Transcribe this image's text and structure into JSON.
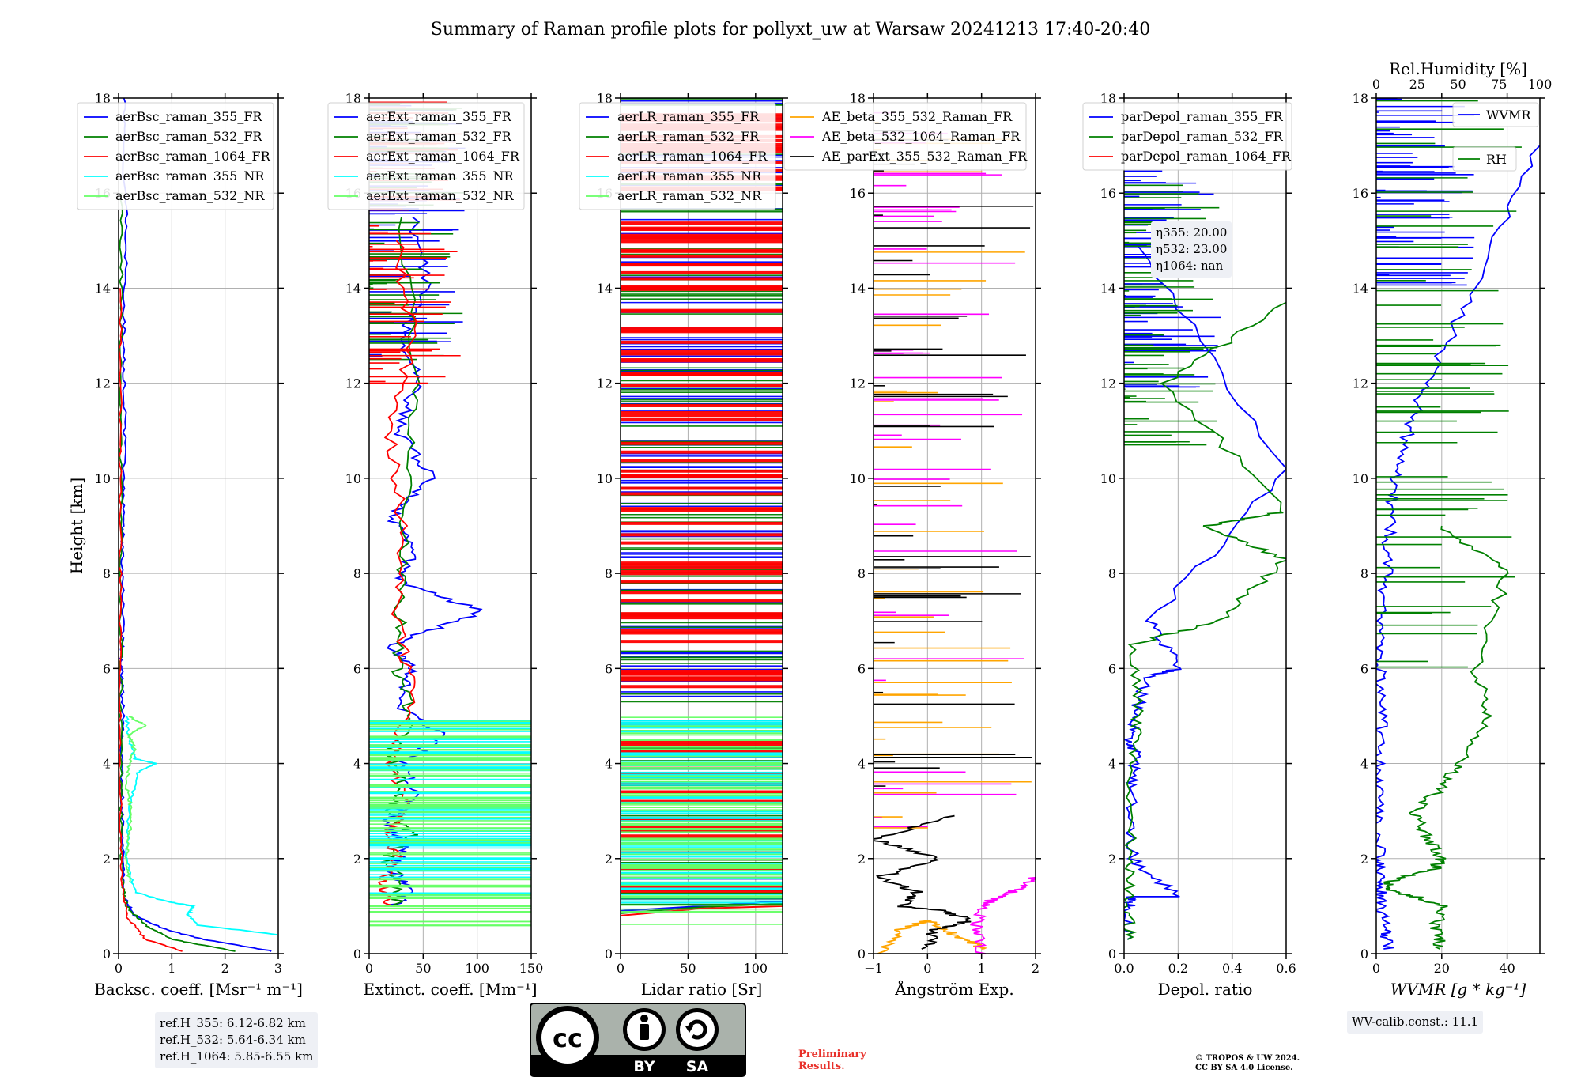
{
  "title": "Summary of Raman profile plots for pollyxt_uw at Warsaw 20241213 17:40-20:40",
  "ylabel": "Height [km]",
  "yticks": [
    "0",
    "2",
    "4",
    "6",
    "8",
    "10",
    "12",
    "14",
    "16",
    "18"
  ],
  "panels": [
    {
      "key": "bsc",
      "xlabel": "Backsc. coeff. [Msr⁻¹ m⁻¹]",
      "xticks": [
        "0",
        "1",
        "2",
        "3"
      ],
      "legend": [
        "aerBsc_raman_355_FR",
        "aerBsc_raman_532_FR",
        "aerBsc_raman_1064_FR",
        "aerBsc_raman_355_NR",
        "aerBsc_raman_532_NR"
      ]
    },
    {
      "key": "ext",
      "xlabel": "Extinct. coeff. [Mm⁻¹]",
      "xticks": [
        "0",
        "50",
        "100",
        "150"
      ],
      "legend": [
        "aerExt_raman_355_FR",
        "aerExt_raman_532_FR",
        "aerExt_raman_1064_FR",
        "aerExt_raman_355_NR",
        "aerExt_raman_532_NR"
      ]
    },
    {
      "key": "lr",
      "xlabel": "Lidar ratio [Sr]",
      "xticks": [
        "0",
        "50",
        "100"
      ],
      "legend": [
        "aerLR_raman_355_FR",
        "aerLR_raman_532_FR",
        "aerLR_raman_1064_FR",
        "aerLR_raman_355_NR",
        "aerLR_raman_532_NR"
      ]
    },
    {
      "key": "ae",
      "xlabel": "Ångström Exp.",
      "xticks": [
        "−1",
        "0",
        "1",
        "2"
      ],
      "legend": [
        "AE_beta_355_532_Raman_FR",
        "AE_beta_532_1064_Raman_FR",
        "AE_parExt_355_532_Raman_FR"
      ]
    },
    {
      "key": "dep",
      "xlabel": "Depol. ratio",
      "xticks": [
        "0.0",
        "0.2",
        "0.4",
        "0.6"
      ],
      "legend": [
        "parDepol_raman_355_FR",
        "parDepol_raman_532_FR",
        "parDepol_raman_1064_FR"
      ]
    },
    {
      "key": "wv",
      "xlabel": "WVMR [g * kg⁻¹]",
      "xticks": [
        "0",
        "20",
        "40"
      ],
      "toplabel": "Rel.Humidity [%]",
      "topticks": [
        "0",
        "25",
        "50",
        "75",
        "100"
      ],
      "legend": [
        "WVMR",
        "RH"
      ]
    }
  ],
  "annotations": {
    "eta": [
      "η355: 20.00",
      "η532: 23.00",
      "η1064: nan"
    ],
    "refh": [
      "ref.H_355: 6.12-6.82 km",
      "ref.H_532: 5.64-6.34 km",
      "ref.H_1064: 5.85-6.55 km"
    ],
    "wvcalib": "WV-calib.const.: 11.1",
    "prelim1": "Preliminary",
    "prelim2": "Results.",
    "copy1": "© TROPOS & UW 2024.",
    "copy2": "CC BY SA 4.0 License.",
    "cc_by": "BY",
    "cc_sa": "SA"
  },
  "colors": {
    "c355": "#0000ff",
    "c532": "#008000",
    "c1064": "#ff0000",
    "c355nr": "#00ffff",
    "c532nr": "#66ff66",
    "orange": "#ffa500",
    "magenta": "#ff00ff",
    "black": "#000000",
    "ann_bg": "#eef0f5"
  },
  "chart_data": [
    {
      "type": "line",
      "panel": "bsc",
      "xlabel": "Backsc. coeff. [Msr⁻¹ m⁻¹]",
      "ylabel": "Height [km]",
      "xlim": [
        0,
        3
      ],
      "ylim": [
        0,
        18
      ],
      "grid": true,
      "legend": "top-right",
      "series": [
        {
          "name": "aerBsc_raman_355_FR",
          "x": [
            2.9,
            1.6,
            0.9,
            0.3,
            0.1,
            0.08,
            0.07,
            0.05,
            0.09,
            0.05,
            0.07,
            0.08,
            0.06,
            0.09,
            0.1,
            0.12,
            0.09,
            0.1,
            0.16,
            0.08,
            0.1
          ],
          "y": [
            0.05,
            0.3,
            0.5,
            0.8,
            1.2,
            2,
            3,
            4,
            5,
            6,
            6.5,
            7.5,
            8.5,
            9,
            10,
            11.5,
            12.5,
            13.5,
            15.3,
            16.5,
            18
          ]
        },
        {
          "name": "aerBsc_raman_532_FR",
          "x": [
            2.2,
            1.0,
            0.5,
            0.15,
            0.07,
            0.05,
            0.04,
            0.04,
            0.05,
            0.04,
            0.05,
            0.05,
            0.05
          ],
          "y": [
            0.05,
            0.3,
            0.6,
            1.0,
            1.5,
            2.5,
            4,
            6,
            8,
            10,
            12,
            14,
            16
          ]
        },
        {
          "name": "aerBsc_raman_1064_FR",
          "x": [
            1.2,
            0.5,
            0.15,
            0.06,
            0.04,
            0.03,
            0.03,
            0.03,
            0.03,
            0.03,
            0.03
          ],
          "y": [
            0.05,
            0.3,
            0.8,
            1.5,
            2.5,
            4,
            6,
            8,
            10,
            12,
            14
          ]
        },
        {
          "name": "aerBsc_raman_355_NR",
          "x": [
            3.0,
            1.5,
            1.3,
            1.4,
            0.9,
            0.3,
            0.15,
            0.2,
            0.35,
            0.7,
            0.3,
            0.2,
            0.15
          ],
          "y": [
            0.4,
            0.6,
            0.8,
            1.0,
            1.1,
            1.3,
            2.0,
            3.0,
            3.8,
            4.0,
            4.1,
            4.5,
            5.0
          ]
        },
        {
          "name": "aerBsc_raman_532_NR",
          "x": [
            0.2,
            0.15,
            0.2,
            0.25,
            0.15,
            0.2,
            0.3,
            0.2,
            0.5,
            0.2
          ],
          "y": [
            1.5,
            2.0,
            2.5,
            3.0,
            3.5,
            4.0,
            4.3,
            4.6,
            4.8,
            5.0
          ]
        }
      ]
    },
    {
      "type": "line",
      "panel": "ext",
      "xlabel": "Extinct. coeff. [Mm⁻¹]",
      "xlim": [
        0,
        150
      ],
      "ylim": [
        0,
        18
      ],
      "grid": true,
      "legend": "top-right",
      "series": [
        {
          "name": "aerExt_raman_355_FR",
          "x": [
            20,
            40,
            20,
            35,
            15,
            45,
            30,
            70,
            25,
            40,
            20,
            105,
            30,
            40,
            20,
            60,
            25,
            45,
            30,
            55,
            40
          ],
          "y": [
            1.0,
            1.3,
            1.8,
            2.2,
            2.8,
            3.3,
            4.0,
            4.6,
            5.2,
            6.0,
            6.5,
            7.2,
            7.8,
            8.5,
            9.2,
            10.0,
            11.0,
            12.0,
            13.0,
            14.0,
            15.5
          ]
        },
        {
          "name": "aerExt_raman_532_FR",
          "x": [
            25,
            30,
            15,
            40,
            20,
            30,
            20,
            40,
            25,
            30,
            35,
            45,
            30
          ],
          "y": [
            1.0,
            1.5,
            2.0,
            2.5,
            3.0,
            3.5,
            4.2,
            5.0,
            6.0,
            7.5,
            9.5,
            12.0,
            15.5
          ]
        },
        {
          "name": "aerExt_raman_1064_FR",
          "x": [
            20,
            10,
            25,
            15,
            35,
            20,
            40,
            25,
            30,
            20,
            40,
            25
          ],
          "y": [
            1.0,
            1.5,
            2.0,
            2.5,
            3.0,
            4.0,
            5.5,
            7.0,
            9.0,
            11.0,
            13.0,
            15.0
          ]
        },
        {
          "name": "aerExt_raman_355_NR",
          "x": [
            150,
            60,
            150,
            90,
            150,
            70,
            150,
            110,
            150
          ],
          "y": [
            1.2,
            1.6,
            2.0,
            2.5,
            3.0,
            3.5,
            4.0,
            4.5,
            4.9
          ]
        },
        {
          "name": "aerExt_raman_532_NR",
          "x": [
            150,
            80,
            150,
            100,
            150,
            90,
            150,
            120,
            150
          ],
          "y": [
            0.5,
            1.0,
            1.5,
            2.0,
            2.5,
            3.0,
            3.5,
            4.2,
            4.9
          ]
        }
      ]
    },
    {
      "type": "line",
      "panel": "lr",
      "xlabel": "Lidar ratio [Sr]",
      "xlim": [
        0,
        120
      ],
      "ylim": [
        0,
        18
      ],
      "grid": true,
      "legend": "top-right",
      "series": [
        {
          "name": "aerLR_raman_355_FR",
          "x": [
            0,
            60,
            120
          ],
          "y": [
            0.9,
            1.0,
            1.1
          ]
        },
        {
          "name": "aerLR_raman_532_FR",
          "x": [
            0,
            60,
            120
          ],
          "y": [
            0.85,
            0.98,
            1.05
          ]
        },
        {
          "name": "aerLR_raman_1064_FR",
          "x": [
            0,
            60,
            120
          ],
          "y": [
            0.8,
            0.95,
            1.0
          ]
        },
        {
          "name": "aerLR_raman_355_NR",
          "x": [
            0,
            120
          ],
          "y": [
            1.5,
            1.5
          ]
        },
        {
          "name": "aerLR_raman_532_NR",
          "x": [
            0,
            120
          ],
          "y": [
            0.6,
            0.6
          ]
        }
      ]
    },
    {
      "type": "line",
      "panel": "ae",
      "xlabel": "Ångström Exp.",
      "xlim": [
        -1,
        2
      ],
      "ylim": [
        0,
        18
      ],
      "grid": true,
      "legend": "top-right",
      "series": [
        {
          "name": "AE_beta_355_532_Raman_FR",
          "x": [
            -0.9,
            -0.5,
            0.0,
            0.5,
            0.9,
            1.0
          ],
          "y": [
            0.0,
            0.5,
            0.7,
            0.4,
            0.2,
            0.1
          ]
        },
        {
          "name": "AE_beta_532_1064_Raman_FR",
          "x": [
            1.0,
            0.9,
            1.0,
            1.3,
            1.8,
            2.0
          ],
          "y": [
            0.0,
            0.5,
            1.0,
            1.2,
            1.4,
            1.6
          ]
        },
        {
          "name": "AE_parExt_355_532_Raman_FR",
          "x": [
            0.0,
            0.1,
            0.8,
            0.3,
            -0.5,
            -0.2,
            -0.9,
            0.2,
            -1.0,
            0.5
          ],
          "y": [
            0.1,
            0.5,
            0.7,
            0.9,
            1.0,
            1.3,
            1.6,
            2.0,
            2.4,
            2.9
          ]
        }
      ]
    },
    {
      "type": "line",
      "panel": "dep",
      "xlabel": "Depol. ratio",
      "xlim": [
        0,
        0.6
      ],
      "ylim": [
        0,
        18
      ],
      "grid": true,
      "legend": "top-right",
      "series": [
        {
          "name": "parDepol_raman_355_FR",
          "x": [
            0.01,
            0.02,
            0.02,
            0.2,
            0.03,
            0.03,
            0.05,
            0.02,
            0.04,
            0.08,
            0.2,
            0.1,
            0.6,
            0.05
          ],
          "y": [
            0.3,
            1.0,
            1.2,
            1.2,
            2.0,
            3.5,
            4.2,
            4.5,
            5.0,
            5.8,
            6.0,
            7.0,
            10.2,
            14.9
          ]
        },
        {
          "name": "parDepol_raman_532_FR",
          "x": [
            0.02,
            0.01,
            0.02,
            0.02,
            0.05,
            0.03,
            0.35,
            0.6,
            0.3,
            0.6,
            0.15,
            0.6
          ],
          "y": [
            0.3,
            1.0,
            2.0,
            4.0,
            5.0,
            6.5,
            7.0,
            8.3,
            9.0,
            9.3,
            12.0,
            13.7
          ]
        }
      ]
    },
    {
      "type": "line",
      "panel": "wv",
      "xlabel": "WVMR [g * kg⁻¹]",
      "xlim": [
        0,
        50
      ],
      "ylim": [
        0,
        18
      ],
      "grid": true,
      "legend": "top-right",
      "top_axis": {
        "label": "Rel.Humidity [%]",
        "lim": [
          0,
          100
        ]
      },
      "series": [
        {
          "name": "WVMR",
          "x": [
            4,
            2.5,
            1.5,
            1.0,
            0.8,
            0.7,
            0.8,
            1.5,
            1.0,
            2,
            3,
            4,
            6,
            10,
            15,
            30,
            50
          ],
          "y": [
            0.1,
            0.5,
            1.0,
            1.5,
            2.0,
            3.0,
            4.0,
            5.0,
            6.0,
            7,
            8,
            9,
            10,
            11,
            12,
            14,
            17
          ]
        },
        {
          "name": "RH",
          "x": [
            20,
            18,
            20,
            12,
            5,
            3,
            18,
            20,
            15,
            12,
            20,
            25,
            35,
            30,
            40,
            20
          ],
          "y": [
            0.1,
            0.5,
            1.0,
            1.2,
            1.3,
            1.5,
            1.8,
            2.0,
            2.5,
            3.0,
            3.5,
            4.0,
            5.0,
            6.0,
            8.0,
            9.0
          ]
        }
      ]
    }
  ]
}
